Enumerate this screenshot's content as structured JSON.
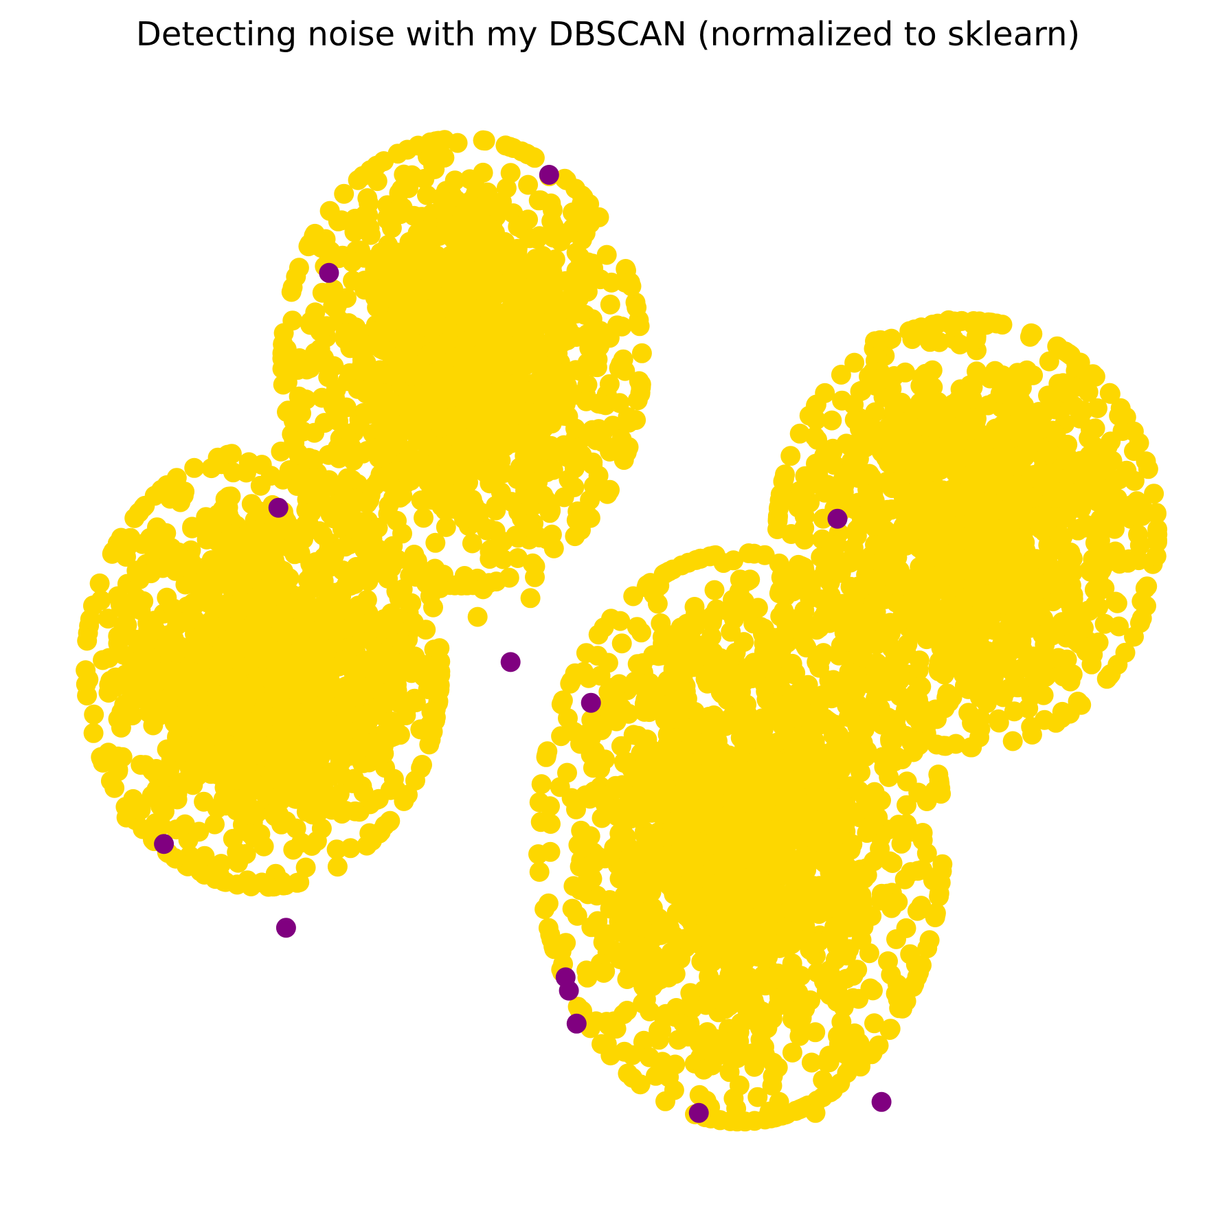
{
  "chart_data": {
    "type": "scatter",
    "title": "Detecting noise with my DBSCAN (normalized to sklearn)",
    "xlabel": "",
    "ylabel": "",
    "axes_visible": false,
    "grid": false,
    "xlim": [
      0,
      100
    ],
    "ylim": [
      0,
      100
    ],
    "colors": {
      "cluster": "#FDD700",
      "noise": "#800080"
    },
    "clusters": [
      {
        "label": 0,
        "center": [
          36.5,
          74.0
        ],
        "spread": [
          7.1,
          8.8
        ],
        "count": 1400,
        "outliers": [
          [
            34.0,
            91.5
          ],
          [
            37.6,
            90.3
          ],
          [
            38.8,
            89.4
          ],
          [
            37.2,
            90.6
          ],
          [
            28.0,
            88.4
          ],
          [
            30.7,
            87.9
          ],
          [
            34.6,
            88.9
          ],
          [
            24.8,
            80.6
          ],
          [
            23.8,
            80.3
          ],
          [
            25.1,
            79.1
          ],
          [
            23.6,
            75.2
          ],
          [
            25.9,
            76.7
          ],
          [
            24.0,
            68.5
          ],
          [
            24.8,
            70.0
          ],
          [
            47.9,
            80.4
          ],
          [
            48.4,
            77.1
          ],
          [
            50.9,
            73.8
          ],
          [
            51.3,
            73.2
          ],
          [
            50.8,
            70.3
          ],
          [
            51.0,
            67.0
          ],
          [
            48.1,
            61.5
          ],
          [
            47.9,
            60.1
          ],
          [
            42.7,
            52.6
          ],
          [
            43.1,
            54.5
          ],
          [
            37.9,
            50.9
          ],
          [
            38.4,
            53.4
          ],
          [
            34.5,
            53.5
          ],
          [
            31.1,
            53.4
          ],
          [
            29.6,
            55.3
          ],
          [
            47.4,
            85.1
          ]
        ]
      },
      {
        "label": 0,
        "center": [
          18.4,
          46.2
        ],
        "spread": [
          7.0,
          8.6
        ],
        "count": 1400,
        "outliers": [
          [
            11.2,
            61.9
          ],
          [
            15.7,
            64.0
          ],
          [
            18.3,
            64.7
          ],
          [
            20.8,
            64.2
          ],
          [
            24.4,
            63.3
          ],
          [
            8.6,
            57.8
          ],
          [
            9.6,
            58.5
          ],
          [
            7.2,
            54.3
          ],
          [
            7.3,
            51.5
          ],
          [
            5.0,
            45.4
          ],
          [
            7.0,
            44.1
          ],
          [
            6.0,
            32.7
          ],
          [
            8.4,
            31.3
          ],
          [
            7.3,
            33.4
          ],
          [
            14.6,
            28.5
          ],
          [
            17.0,
            27.0
          ],
          [
            18.3,
            26.8
          ],
          [
            25.1,
            29.8
          ],
          [
            31.9,
            45.8
          ],
          [
            32.8,
            40.7
          ],
          [
            30.5,
            35.2
          ],
          [
            30.3,
            36.2
          ],
          [
            32.1,
            50.4
          ],
          [
            32.2,
            47.3
          ]
        ]
      },
      {
        "label": 0,
        "center": [
          61.8,
          30.9
        ],
        "spread": [
          8.0,
          11.2
        ],
        "count": 1700,
        "outliers": [
          [
            59.2,
            50.4
          ],
          [
            61.2,
            50.7
          ],
          [
            63.6,
            50.0
          ],
          [
            64.8,
            49.0
          ],
          [
            52.9,
            46.7
          ],
          [
            49.8,
            44.1
          ],
          [
            48.2,
            39.9
          ],
          [
            48.4,
            37.2
          ],
          [
            48.1,
            34.4
          ],
          [
            48.0,
            30.9
          ],
          [
            48.8,
            23.3
          ],
          [
            49.7,
            22.1
          ],
          [
            78.2,
            24.7
          ],
          [
            79.3,
            27.0
          ],
          [
            77.2,
            20.3
          ],
          [
            76.1,
            16.2
          ],
          [
            76.2,
            15.4
          ],
          [
            72.6,
            12.2
          ],
          [
            71.8,
            10.0
          ],
          [
            61.4,
            6.3
          ],
          [
            65.3,
            6.9
          ],
          [
            68.6,
            5.9
          ],
          [
            54.6,
            13.4
          ],
          [
            61.7,
            8.4
          ]
        ]
      },
      {
        "label": 0,
        "center": [
          82.4,
          58.4
        ],
        "spread": [
          7.5,
          8.4
        ],
        "count": 1400,
        "outliers": [
          [
            74.0,
            75.9
          ],
          [
            74.5,
            76.0
          ],
          [
            77.4,
            76.1
          ],
          [
            79.0,
            77.1
          ],
          [
            80.7,
            77.8
          ],
          [
            83.5,
            77.7
          ],
          [
            84.2,
            77.5
          ],
          [
            88.1,
            76.3
          ],
          [
            91.1,
            72.1
          ],
          [
            93.6,
            67.9
          ],
          [
            93.9,
            66.4
          ],
          [
            94.0,
            64.8
          ],
          [
            94.3,
            56.7
          ],
          [
            94.3,
            51.8
          ],
          [
            93.3,
            59.0
          ],
          [
            91.6,
            50.0
          ],
          [
            88.2,
            43.7
          ],
          [
            86.2,
            44.4
          ],
          [
            82.5,
            42.2
          ],
          [
            79.5,
            42.5
          ],
          [
            78.6,
            40.5
          ],
          [
            78.1,
            41.3
          ],
          [
            68.8,
            63.1
          ],
          [
            69.3,
            59.8
          ]
        ]
      }
    ],
    "noise_points": [
      [
        44.4,
        91.0
      ],
      [
        24.4,
        82.1
      ],
      [
        19.8,
        60.8
      ],
      [
        70.6,
        59.8
      ],
      [
        40.9,
        46.8
      ],
      [
        48.2,
        43.1
      ],
      [
        9.4,
        30.3
      ],
      [
        20.5,
        22.7
      ],
      [
        45.9,
        18.2
      ],
      [
        46.2,
        17.0
      ],
      [
        46.9,
        14.0
      ],
      [
        58.0,
        5.9
      ],
      [
        74.6,
        6.9
      ]
    ]
  }
}
